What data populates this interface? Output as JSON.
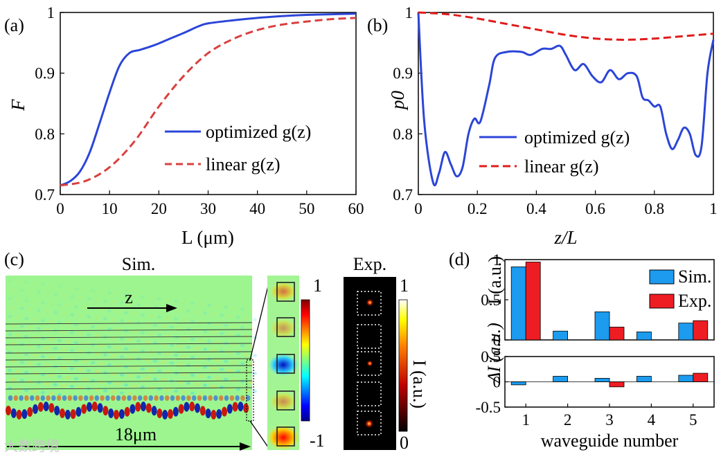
{
  "chart_data": [
    {
      "panel": "(a)",
      "type": "line",
      "xlabel": "L (μm)",
      "ylabel": "F",
      "xlim": [
        0,
        60
      ],
      "ylim": [
        0.7,
        1.0
      ],
      "xticks": [
        "0",
        "10",
        "20",
        "30",
        "40",
        "50",
        "60"
      ],
      "yticks": [
        "0.7",
        "0.8",
        "0.9",
        "1"
      ],
      "series": [
        {
          "name": "optimized g(z)",
          "color": "#2b45d8",
          "style": "solid",
          "x": [
            0,
            2,
            4,
            6,
            8,
            10,
            12,
            14,
            16,
            18,
            20,
            22,
            25,
            28,
            30,
            35,
            40,
            45,
            50,
            55,
            60
          ],
          "y": [
            0.715,
            0.722,
            0.738,
            0.77,
            0.818,
            0.868,
            0.912,
            0.933,
            0.938,
            0.943,
            0.949,
            0.956,
            0.966,
            0.977,
            0.982,
            0.987,
            0.991,
            0.994,
            0.996,
            0.997,
            0.998
          ]
        },
        {
          "name": "linear g(z)",
          "color": "#d9403f",
          "style": "dashed",
          "x": [
            0,
            5,
            10,
            15,
            20,
            25,
            30,
            35,
            40,
            45,
            50,
            55,
            60
          ],
          "y": [
            0.715,
            0.722,
            0.745,
            0.787,
            0.845,
            0.895,
            0.933,
            0.956,
            0.971,
            0.98,
            0.985,
            0.989,
            0.991
          ]
        }
      ],
      "legend": "lower-right",
      "legend_labels": [
        "optimized g(z)",
        "linear g(z)"
      ]
    },
    {
      "panel": "(b)",
      "type": "line",
      "xlabel": "z/L",
      "ylabel": "p0",
      "xlim": [
        0,
        1
      ],
      "ylim": [
        0.7,
        1.0
      ],
      "xticks": [
        "0",
        "0.2",
        "0.4",
        "0.6",
        "0.8",
        "1"
      ],
      "yticks": [
        "0.7",
        "0.8",
        "0.9",
        "1"
      ],
      "series": [
        {
          "name": "optimized g(z)",
          "color": "#2b45d8",
          "style": "solid",
          "x": [
            0,
            0.02,
            0.05,
            0.07,
            0.09,
            0.11,
            0.13,
            0.15,
            0.17,
            0.19,
            0.21,
            0.24,
            0.26,
            0.3,
            0.35,
            0.38,
            0.42,
            0.45,
            0.48,
            0.5,
            0.53,
            0.56,
            0.59,
            0.62,
            0.65,
            0.68,
            0.71,
            0.74,
            0.76,
            0.78,
            0.8,
            0.82,
            0.84,
            0.86,
            0.88,
            0.9,
            0.92,
            0.94,
            0.96,
            0.98,
            1.0
          ],
          "y": [
            1.0,
            0.82,
            0.72,
            0.735,
            0.77,
            0.75,
            0.73,
            0.745,
            0.8,
            0.825,
            0.82,
            0.88,
            0.925,
            0.935,
            0.935,
            0.93,
            0.94,
            0.94,
            0.945,
            0.93,
            0.905,
            0.915,
            0.895,
            0.885,
            0.905,
            0.89,
            0.9,
            0.895,
            0.86,
            0.855,
            0.845,
            0.845,
            0.8,
            0.775,
            0.79,
            0.81,
            0.8,
            0.765,
            0.78,
            0.9,
            0.955
          ]
        },
        {
          "name": "linear g(z)",
          "color": "#e11b1b",
          "style": "dashed",
          "x": [
            0,
            0.1,
            0.2,
            0.3,
            0.4,
            0.5,
            0.6,
            0.7,
            0.8,
            0.9,
            1.0
          ],
          "y": [
            1.0,
            0.997,
            0.99,
            0.981,
            0.972,
            0.963,
            0.957,
            0.955,
            0.957,
            0.961,
            0.965
          ]
        }
      ],
      "legend": "lower-right",
      "legend_labels": [
        "optimized g(z)",
        "linear g(z)"
      ]
    },
    {
      "panel": "(c)",
      "type": "heatmap",
      "title_sim": "Sim.",
      "title_exp": "Exp.",
      "arrow_label": "z",
      "scale_label": "18μm",
      "colorbar_sim": [
        "1",
        "-1"
      ],
      "colorbar_exp": [
        "1",
        "0"
      ],
      "colorbar_exp_label": "I (a.u.)"
    },
    {
      "panel": "(d)",
      "type": "bar",
      "xlabel": "waveguide number",
      "categories": [
        "1",
        "2",
        "3",
        "4",
        "5"
      ],
      "top": {
        "ylabel": "I (a.u.)",
        "ylim": [
          0,
          1
        ],
        "yticks": [
          "0",
          "0.5",
          "1"
        ],
        "series": [
          {
            "name": "Sim.",
            "color": "#1c9bef",
            "values": [
              0.91,
              0.11,
              0.35,
              0.1,
              0.21
            ]
          },
          {
            "name": "Exp.",
            "color": "#ee1d23",
            "values": [
              0.97,
              0.0,
              0.16,
              0.0,
              0.24
            ]
          }
        ]
      },
      "bottom": {
        "ylabel": "ΔI (a.u.)",
        "ylim": [
          -0.5,
          0.5
        ],
        "yticks": [
          "0.5",
          "0",
          "-0.5"
        ],
        "series": [
          {
            "name": "Sim.",
            "color": "#1c9bef",
            "values": [
              -0.06,
              0.11,
              0.07,
              0.11,
              0.13
            ]
          },
          {
            "name": "Exp.",
            "color": "#ee1d23",
            "values": [
              0.0,
              0.0,
              -0.1,
              0.0,
              0.17
            ]
          }
        ]
      },
      "legend": "top-right",
      "legend_labels": [
        "Sim.",
        "Exp."
      ]
    }
  ],
  "watermark": "大数跨境"
}
